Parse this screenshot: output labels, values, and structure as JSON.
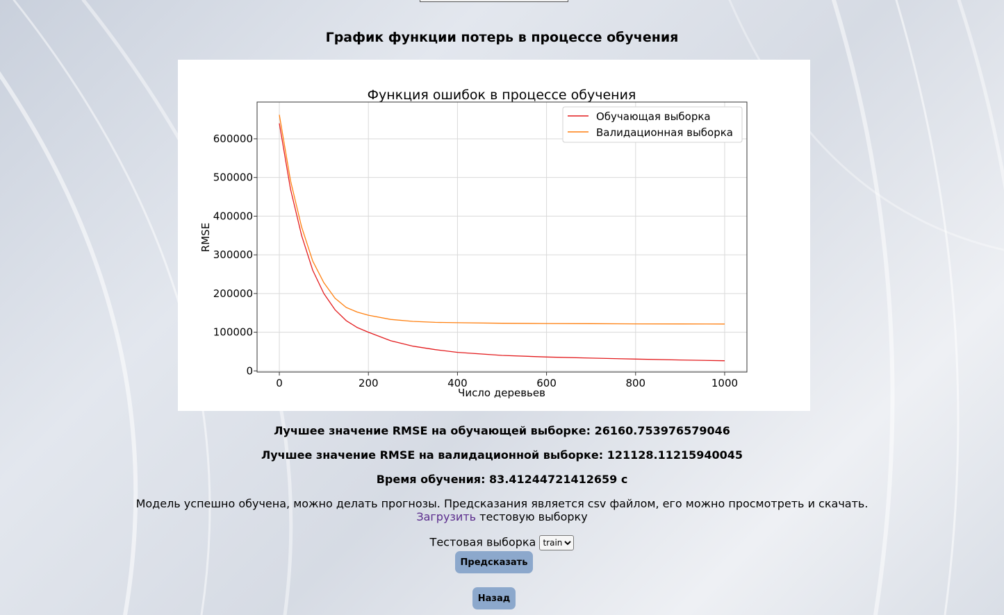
{
  "page": {
    "title": "График функции потерь в процессе обучения"
  },
  "chart_data": {
    "type": "line",
    "title": "Функция ошибок в процессе обучения",
    "xlabel": "Число деревьев",
    "ylabel": "RMSE",
    "xlim": [
      -50,
      1050
    ],
    "ylim": [
      -3000,
      695000
    ],
    "xticks": [
      0,
      200,
      400,
      600,
      800,
      1000
    ],
    "yticks": [
      0,
      100000,
      200000,
      300000,
      400000,
      500000,
      600000
    ],
    "grid": true,
    "legend_position": "top-right",
    "x": [
      0,
      25,
      50,
      75,
      100,
      125,
      150,
      175,
      200,
      250,
      300,
      350,
      400,
      500,
      600,
      700,
      800,
      900,
      1000
    ],
    "series": [
      {
        "name": "Обучающая выборка",
        "color": "#e31a1c",
        "values": [
          640000,
          470000,
          350000,
          260000,
          200000,
          158000,
          130000,
          112000,
          100000,
          78000,
          64000,
          55000,
          48000,
          40000,
          36000,
          33000,
          30500,
          28200,
          26161
        ]
      },
      {
        "name": "Валидационная выборка",
        "color": "#ff7f0e",
        "values": [
          662000,
          492000,
          372000,
          284000,
          228000,
          188000,
          164000,
          152000,
          144000,
          133000,
          128000,
          125500,
          124500,
          123200,
          122500,
          122000,
          121600,
          121300,
          121128
        ]
      }
    ]
  },
  "stats": {
    "train_best": "Лучшее значение RMSE на обучающей выборке: 26160.753976579046",
    "val_best": "Лучшее значение RMSE на валидационной выборке: 121128.11215940045",
    "time": "Время обучения: 83.41244721412659 с"
  },
  "message": {
    "text": "Модель успешно обучена, можно делать прогнозы. Предсказания является csv файлом, его можно просмотреть и скачать.",
    "upload_link": "Загрузить",
    "upload_rest": " тестовую выборку"
  },
  "form": {
    "label": "Тестовая выборка ",
    "selected": "train",
    "predict_button": "Предсказать",
    "back_button": "Назад"
  },
  "colors": {
    "button": "#8ca8cc",
    "link": "#5a2b8c"
  }
}
